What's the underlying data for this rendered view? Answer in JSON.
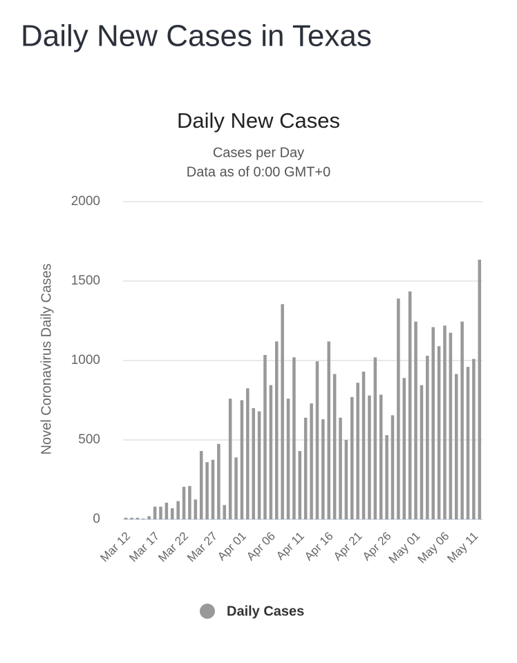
{
  "page_title": "Daily New Cases in Texas",
  "chart_data": {
    "type": "bar",
    "title": "Daily New Cases",
    "subtitle": [
      "Cases per Day",
      "Data as of 0:00 GMT+0"
    ],
    "y_label": "Novel Coronavirus Daily Cases",
    "categories": [
      "Mar 12",
      null,
      null,
      null,
      null,
      "Mar 17",
      null,
      null,
      null,
      null,
      "Mar 22",
      null,
      null,
      null,
      null,
      "Mar 27",
      null,
      null,
      null,
      null,
      "Apr 01",
      null,
      null,
      null,
      null,
      "Apr 06",
      null,
      null,
      null,
      null,
      "Apr 11",
      null,
      null,
      null,
      null,
      "Apr 16",
      null,
      null,
      null,
      null,
      "Apr 21",
      null,
      null,
      null,
      null,
      "Apr 26",
      null,
      null,
      null,
      null,
      "May 01",
      null,
      null,
      null,
      null,
      "May 06",
      null,
      null,
      null,
      null,
      "May 11",
      null
    ],
    "series": [
      {
        "name": "Daily Cases",
        "color": "#999999",
        "values": [
          10,
          10,
          10,
          5,
          20,
          80,
          80,
          105,
          70,
          115,
          205,
          210,
          125,
          430,
          360,
          375,
          475,
          90,
          760,
          390,
          750,
          825,
          700,
          680,
          1035,
          845,
          1120,
          1355,
          760,
          1020,
          430,
          640,
          730,
          995,
          630,
          1120,
          915,
          640,
          500,
          770,
          860,
          930,
          780,
          1020,
          785,
          530,
          655,
          1390,
          890,
          1435,
          1245,
          845,
          1030,
          1210,
          1090,
          1220,
          1175,
          915,
          1245,
          960,
          1010,
          1635
        ]
      }
    ],
    "ylim": [
      0,
      2000
    ],
    "yticks": [
      0,
      500,
      1000,
      1500,
      2000
    ],
    "grid": true,
    "legend": "bottom"
  }
}
